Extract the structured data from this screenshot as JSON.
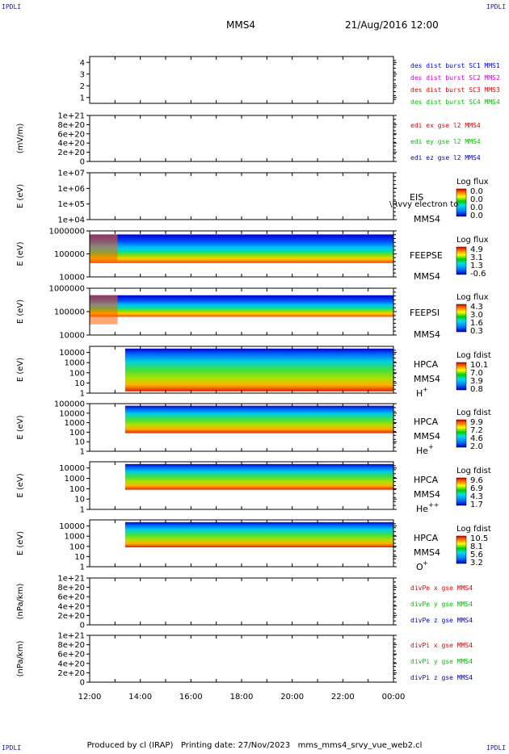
{
  "header": {
    "corner_label": "IPDLI",
    "spacecraft": "MMS4",
    "datetime": "21/Aug/2016 12:00"
  },
  "footer": {
    "produced_by": "Produced by cl (IRAP)",
    "printing_date": "Printing date: 27/Nov/2023",
    "script": "mms_mms4_srvy_vue_web2.cl"
  },
  "colors": {
    "mms1": "#0000ff",
    "mms2": "#d000d0",
    "mms3": "#e00000",
    "mms4": "#00c000",
    "red": "#e00000",
    "green": "#00c000",
    "blue": "#0000c0"
  },
  "chart_data": [
    {
      "type": "line",
      "panel": "des",
      "y_ticks": [
        "1",
        "2",
        "3",
        "4"
      ],
      "ylim": [
        0.5,
        4.5
      ],
      "series": [
        {
          "name": "des dist burst SC1 MMS1",
          "color": "mms1",
          "values": []
        },
        {
          "name": "des dist burst SC2 MMS2",
          "color": "mms2",
          "values": []
        },
        {
          "name": "des dist burst SC3 MMS3",
          "color": "mms3",
          "values": []
        },
        {
          "name": "des dist burst SC4 MMS4",
          "color": "mms4",
          "values": []
        }
      ]
    },
    {
      "type": "line",
      "panel": "edi",
      "ylabel": "(mV/m)",
      "y_ticks": [
        "0",
        "2e+20",
        "4e+20",
        "6e+20",
        "8e+20",
        "1e+21"
      ],
      "ylim": [
        0,
        1e+21
      ],
      "series": [
        {
          "name": "edi ex gse l2 MMS4",
          "color": "red",
          "values": []
        },
        {
          "name": "edi ey gse l2 MMS4",
          "color": "green",
          "values": []
        },
        {
          "name": "edi ez gse l2 MMS4",
          "color": "blue",
          "values": []
        }
      ]
    },
    {
      "type": "heatmap",
      "panel": "eis",
      "ylabel": "E (eV)",
      "y_ticks": [
        "1e+04",
        "1e+05",
        "1e+06",
        "1e+07"
      ],
      "ylim": [
        10000.0,
        10000000.0
      ],
      "instrument": "EIS",
      "instrument_sub": "\\Rvvy electron to",
      "spacecraft": "MMS4",
      "cb_title": "Log flux",
      "cb_ticks": [
        "0.0",
        "0.0",
        "0.0",
        "0.0"
      ],
      "coverage": []
    },
    {
      "type": "heatmap",
      "panel": "feepse",
      "ylabel": "E (eV)",
      "y_ticks": [
        "10000",
        "100000",
        "1000000"
      ],
      "ylim": [
        10000,
        1000000
      ],
      "instrument": "FEEPSE",
      "spacecraft": "MMS4",
      "cb_title": "Log flux",
      "cb_ticks": [
        "4.9",
        "3.1",
        "1.3",
        "-0.6"
      ],
      "coverage": [
        [
          0,
          24
        ]
      ]
    },
    {
      "type": "heatmap",
      "panel": "feepsi",
      "ylabel": "E (eV)",
      "y_ticks": [
        "10000",
        "100000",
        "1000000"
      ],
      "ylim": [
        10000,
        1000000
      ],
      "instrument": "FEEPSI",
      "spacecraft": "MMS4",
      "cb_title": "Log flux",
      "cb_ticks": [
        "4.3",
        "3.0",
        "1.6",
        "0.3"
      ],
      "coverage": [
        [
          0,
          24
        ]
      ]
    },
    {
      "type": "heatmap",
      "panel": "hpca_h",
      "ylabel": "E (eV)",
      "y_ticks": [
        "1",
        "10",
        "100",
        "1000",
        "10000"
      ],
      "ylim": [
        1,
        40000
      ],
      "instrument": "HPCA",
      "spacecraft": "MMS4",
      "species": "H",
      "species_sup": "+",
      "cb_title": "Log fdist",
      "cb_ticks": [
        "10.1",
        "7.0",
        "3.9",
        "0.8"
      ],
      "coverage": [
        [
          2.8,
          24
        ]
      ]
    },
    {
      "type": "heatmap",
      "panel": "hpca_he",
      "ylabel": "E (eV)",
      "y_ticks": [
        "1",
        "10",
        "100",
        "1000",
        "10000",
        "100000"
      ],
      "ylim": [
        1,
        100000
      ],
      "instrument": "HPCA",
      "spacecraft": "MMS4",
      "species": "He",
      "species_sup": "+",
      "cb_title": "Log fdist",
      "cb_ticks": [
        "9.9",
        "7.2",
        "4.6",
        "2.0"
      ],
      "coverage": [
        [
          2.8,
          24
        ]
      ]
    },
    {
      "type": "heatmap",
      "panel": "hpca_hepp",
      "ylabel": "E (eV)",
      "y_ticks": [
        "1",
        "10",
        "100",
        "1000",
        "10000"
      ],
      "ylim": [
        1,
        40000
      ],
      "instrument": "HPCA",
      "spacecraft": "MMS4",
      "species": "He",
      "species_sup": "++",
      "cb_title": "Log fdist",
      "cb_ticks": [
        "9.6",
        "6.9",
        "4.3",
        "1.7"
      ],
      "coverage": [
        [
          2.8,
          24
        ]
      ]
    },
    {
      "type": "heatmap",
      "panel": "hpca_o",
      "ylabel": "E (eV)",
      "y_ticks": [
        "1",
        "10",
        "100",
        "1000",
        "10000"
      ],
      "ylim": [
        1,
        40000
      ],
      "instrument": "HPCA",
      "spacecraft": "MMS4",
      "species": "O",
      "species_sup": "+",
      "cb_title": "Log fdist",
      "cb_ticks": [
        "10.5",
        "8.1",
        "5.6",
        "3.2"
      ],
      "coverage": [
        [
          2.8,
          24
        ]
      ]
    },
    {
      "type": "line",
      "panel": "dive",
      "ylabel": "(nPa/km)",
      "y_ticks": [
        "0",
        "2e+20",
        "4e+20",
        "6e+20",
        "8e+20",
        "1e+21"
      ],
      "ylim": [
        0,
        1e+21
      ],
      "series": [
        {
          "name": "divPe x gse MMS4",
          "color": "red",
          "values": []
        },
        {
          "name": "divPe y gse MMS4",
          "color": "green",
          "values": []
        },
        {
          "name": "divPe z gse MMS4",
          "color": "blue",
          "values": []
        }
      ]
    },
    {
      "type": "line",
      "panel": "divi",
      "ylabel": "(nPa/km)",
      "y_ticks": [
        "0",
        "2e+20",
        "4e+20",
        "6e+20",
        "8e+20",
        "1e+21"
      ],
      "ylim": [
        0,
        1e+21
      ],
      "series": [
        {
          "name": "divPi x gse MMS4",
          "color": "red",
          "values": []
        },
        {
          "name": "divPi y gse MMS4",
          "color": "green",
          "values": []
        },
        {
          "name": "divPi z gse MMS4",
          "color": "blue",
          "values": []
        }
      ]
    }
  ],
  "x_axis": {
    "ticks": [
      "12:00",
      "14:00",
      "16:00",
      "18:00",
      "20:00",
      "22:00",
      "00:00"
    ],
    "xlim_hours": [
      0,
      24
    ]
  }
}
